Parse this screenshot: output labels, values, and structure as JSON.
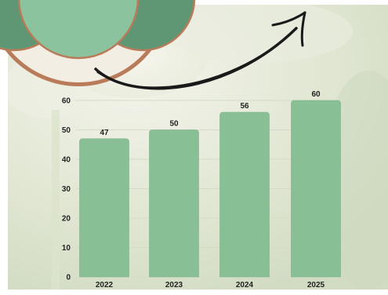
{
  "chart_data": {
    "type": "bar",
    "categories": [
      "2022",
      "2023",
      "2024",
      "2025"
    ],
    "values": [
      47,
      50,
      56,
      60
    ],
    "data_labels": [
      "47",
      "50",
      "56",
      "60"
    ],
    "title": "",
    "xlabel": "",
    "ylabel": "",
    "ylim": [
      0,
      60
    ],
    "yticks": [
      "0",
      "10",
      "20",
      "30",
      "40",
      "50",
      "60"
    ],
    "grid": true,
    "legend": "none",
    "colors": {
      "bar": "#89bf95",
      "bar_edge": "#7cb288",
      "grid": "#d4dcc8",
      "text": "#222222"
    }
  },
  "decorations": {
    "background_color": "#e6ead9",
    "medallion_colors": [
      "#8cc39f",
      "#5f9673",
      "#b97c5b",
      "#f3eee4"
    ],
    "arrow_color": "#1a1a1a"
  }
}
